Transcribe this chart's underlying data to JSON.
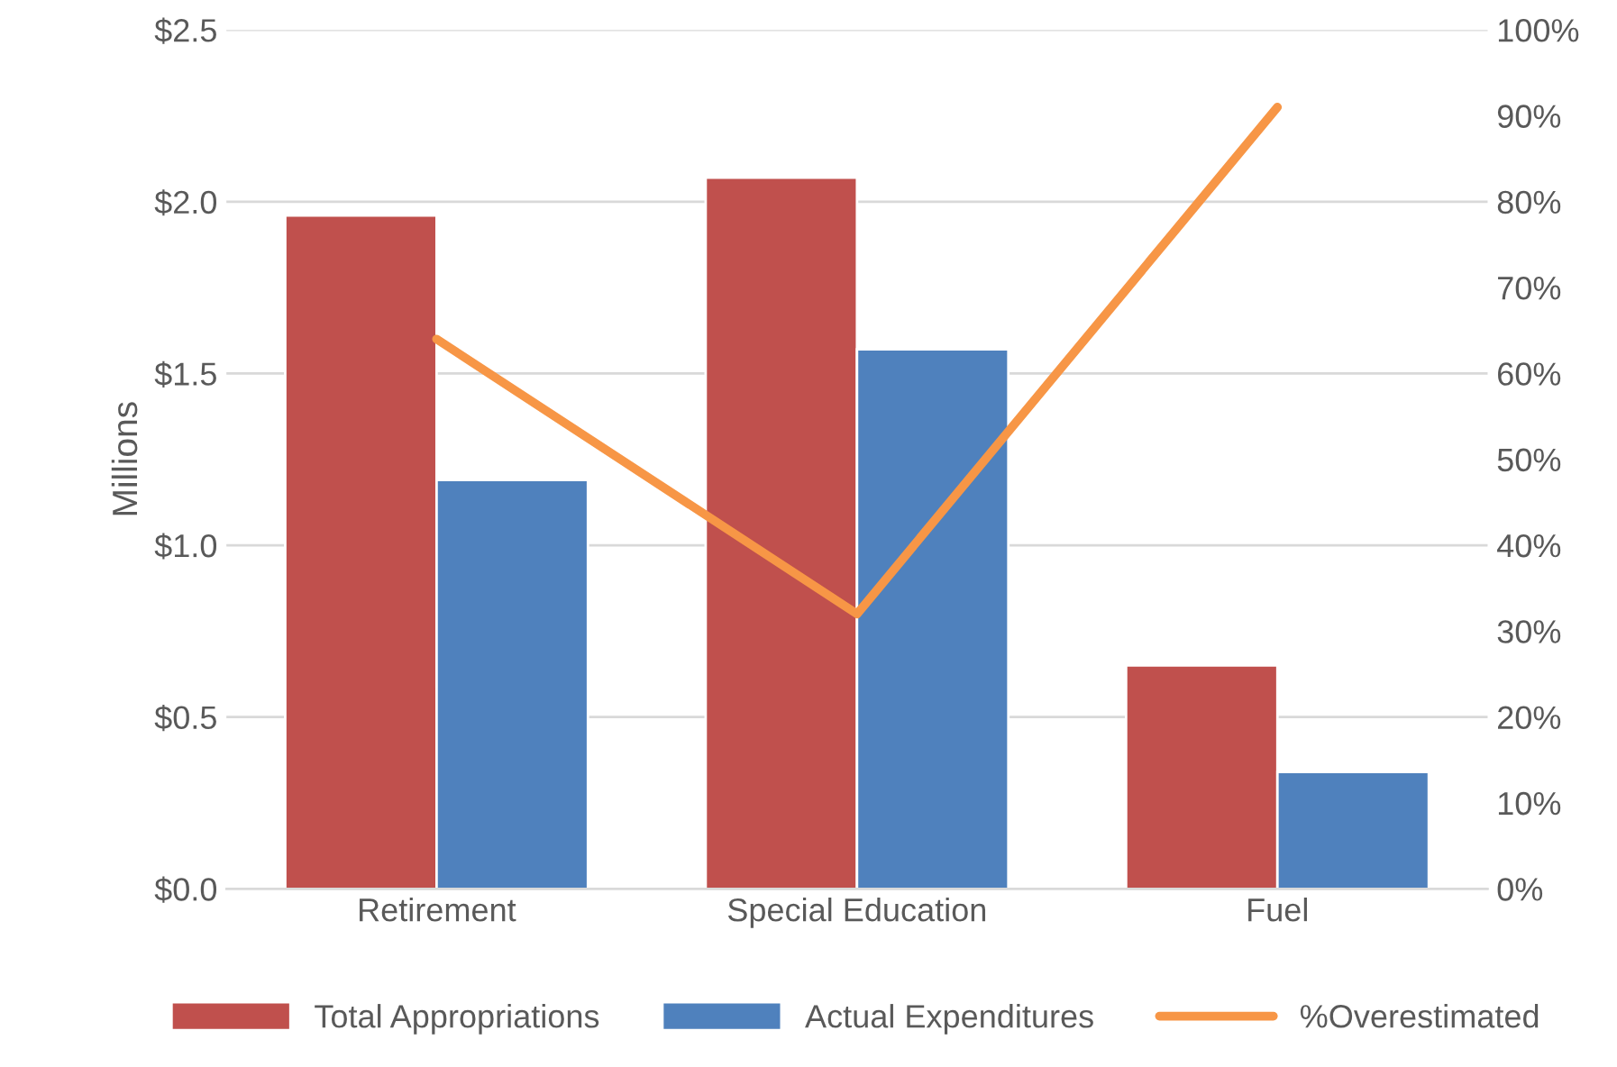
{
  "chart_data": {
    "type": "bar",
    "ylabel": "Millions",
    "categories": [
      "Retirement",
      "Special Education",
      "Fuel"
    ],
    "series": [
      {
        "name": "Total Appropriations",
        "color": "#c0504d",
        "values": [
          1.96,
          2.07,
          0.65
        ]
      },
      {
        "name": "Actual Expenditures",
        "color": "#4f81bd",
        "values": [
          1.19,
          1.57,
          0.34
        ]
      },
      {
        "name": "%Overestimated",
        "type": "line",
        "axis": "y2",
        "color": "#f79646",
        "values": [
          64,
          32,
          91
        ]
      }
    ],
    "ylim": [
      0,
      2.5
    ],
    "yticks": [
      {
        "value": 0,
        "label": "$0.0"
      },
      {
        "value": 0.5,
        "label": "$0.5"
      },
      {
        "value": 1,
        "label": "$1.0"
      },
      {
        "value": 1.5,
        "label": "$1.5"
      },
      {
        "value": 2,
        "label": "$2.0"
      },
      {
        "value": 2.5,
        "label": "$2.5"
      }
    ],
    "y2lim": [
      0,
      100
    ],
    "y2ticks": [
      {
        "value": 0,
        "label": "0%"
      },
      {
        "value": 10,
        "label": "10%"
      },
      {
        "value": 20,
        "label": "20%"
      },
      {
        "value": 30,
        "label": "30%"
      },
      {
        "value": 40,
        "label": "40%"
      },
      {
        "value": 50,
        "label": "50%"
      },
      {
        "value": 60,
        "label": "60%"
      },
      {
        "value": 70,
        "label": "70%"
      },
      {
        "value": 80,
        "label": "80%"
      },
      {
        "value": 90,
        "label": "90%"
      },
      {
        "value": 100,
        "label": "100%"
      }
    ],
    "grid": "y",
    "legend": "bottom",
    "marker": "none",
    "line_style": "solid"
  }
}
